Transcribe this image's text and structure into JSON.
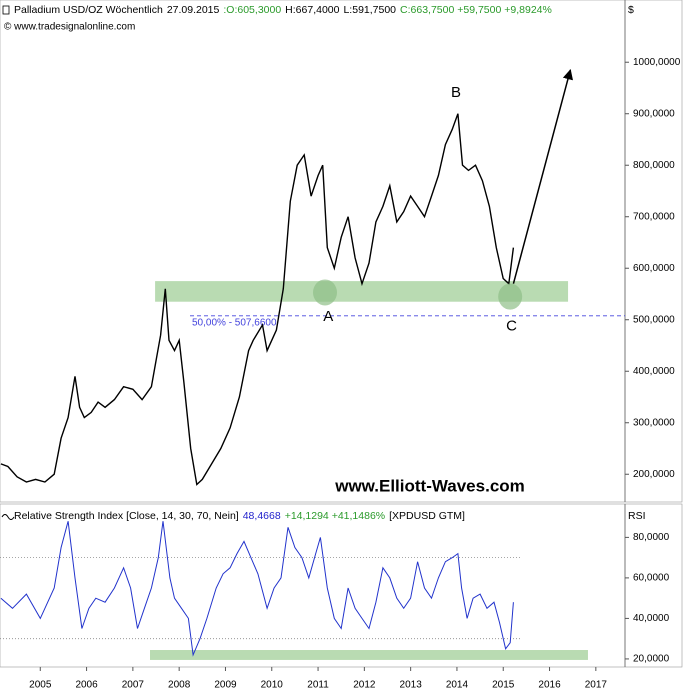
{
  "chart_data": [
    {
      "type": "line",
      "title_parts": [
        {
          "text": "Palladium USD/OZ Wöchentlich",
          "color": "#000000"
        },
        {
          "text": "27.09.2015",
          "color": "#000000"
        },
        {
          "text": ":O:605,3000",
          "color": "#2a9a2a"
        },
        {
          "text": "H:667,4000",
          "color": "#000000"
        },
        {
          "text": "L:591,7500",
          "color": "#000000"
        },
        {
          "text": "C:663,7500 +59,7500 +9,8924%",
          "color": "#2a9a2a"
        }
      ],
      "subtitle": "© www.tradesignalonline.com",
      "unit": "$",
      "watermark": "www.Elliott-Waves.com",
      "xlim": [
        2004.63,
        2018.13
      ],
      "ylim": [
        150,
        1115
      ],
      "yticks": [
        {
          "value": 200,
          "label": "200,0000"
        },
        {
          "value": 300,
          "label": "300,0000"
        },
        {
          "value": 400,
          "label": "400,0000"
        },
        {
          "value": 500,
          "label": "500,0000"
        },
        {
          "value": 600,
          "label": "600,0000"
        },
        {
          "value": 700,
          "label": "700,0000"
        },
        {
          "value": 800,
          "label": "800,0000"
        },
        {
          "value": 900,
          "label": "900,0000"
        },
        {
          "value": 1000,
          "label": "1000,0000"
        }
      ],
      "series": [
        {
          "color": "#000000",
          "x": [
            2004.65,
            2004.8,
            2005.0,
            2005.2,
            2005.4,
            2005.6,
            2005.8,
            2005.95,
            2006.1,
            2006.25,
            2006.35,
            2006.45,
            2006.6,
            2006.75,
            2006.9,
            2007.1,
            2007.3,
            2007.5,
            2007.7,
            2007.9,
            2008.0,
            2008.1,
            2008.2,
            2008.28,
            2008.4,
            2008.5,
            2008.6,
            2008.75,
            2008.88,
            2009.0,
            2009.2,
            2009.4,
            2009.6,
            2009.8,
            2010.0,
            2010.1,
            2010.3,
            2010.4,
            2010.6,
            2010.75,
            2010.9,
            2011.05,
            2011.2,
            2011.35,
            2011.5,
            2011.6,
            2011.7,
            2011.85,
            2012.0,
            2012.15,
            2012.3,
            2012.45,
            2012.6,
            2012.75,
            2012.9,
            2013.05,
            2013.2,
            2013.35,
            2013.5,
            2013.65,
            2013.8,
            2013.95,
            2014.1,
            2014.25,
            2014.4,
            2014.52,
            2014.62,
            2014.75,
            2014.9,
            2015.05,
            2015.2,
            2015.35,
            2015.5,
            2015.62,
            2015.72
          ],
          "values": [
            220,
            215,
            195,
            185,
            190,
            185,
            200,
            270,
            310,
            390,
            330,
            310,
            320,
            340,
            330,
            345,
            370,
            365,
            345,
            370,
            420,
            470,
            560,
            460,
            440,
            460,
            380,
            250,
            180,
            190,
            220,
            250,
            290,
            350,
            440,
            460,
            490,
            440,
            480,
            560,
            730,
            800,
            820,
            740,
            780,
            800,
            640,
            600,
            660,
            700,
            620,
            570,
            610,
            690,
            720,
            760,
            690,
            710,
            740,
            720,
            700,
            740,
            780,
            840,
            870,
            900,
            800,
            790,
            800,
            770,
            720,
            640,
            580,
            570,
            640
          ]
        }
      ],
      "zone": {
        "x": [
          2007.98,
          2016.9
        ],
        "y": [
          535,
          575
        ],
        "color": "#b9dbb2"
      },
      "level": {
        "value": 507.66,
        "label": "50,00% - 507,6600",
        "color": "#4444dd"
      },
      "labels": [
        {
          "text": "A",
          "x": 2011.72,
          "y": 505
        },
        {
          "text": "B",
          "x": 2014.48,
          "y": 940
        },
        {
          "text": "C",
          "x": 2015.68,
          "y": 487
        }
      ],
      "circles": [
        {
          "x": 2011.65,
          "y": 553
        },
        {
          "x": 2015.65,
          "y": 545
        }
      ],
      "arrow": {
        "x": [
          2015.72,
          2016.95
        ],
        "y": [
          570,
          985
        ]
      }
    },
    {
      "type": "line",
      "title_parts": [
        {
          "text": "Relative Strength Index [Close, 14, 30, 70, Nein]",
          "color": "#000000"
        },
        {
          "text": "48,4668",
          "color": "#2222cc"
        },
        {
          "text": "+14,1294 +41,1486%",
          "color": "#2a9a2a"
        },
        {
          "text": "[XPDUSD GTM]",
          "color": "#000000"
        }
      ],
      "unit": "RSI",
      "xlim": [
        2004.63,
        2018.13
      ],
      "ylim": [
        17,
        95
      ],
      "yticks": [
        {
          "value": 20,
          "label": "20,0000"
        },
        {
          "value": 40,
          "label": "40,0000"
        },
        {
          "value": 60,
          "label": "60,0000"
        },
        {
          "value": 80,
          "label": "80,0000"
        }
      ],
      "xticks": [
        {
          "value": 2005.5,
          "label": "2005"
        },
        {
          "value": 2006.5,
          "label": "2006"
        },
        {
          "value": 2007.5,
          "label": "2007"
        },
        {
          "value": 2008.5,
          "label": "2008"
        },
        {
          "value": 2009.5,
          "label": "2009"
        },
        {
          "value": 2010.5,
          "label": "2010"
        },
        {
          "value": 2011.5,
          "label": "2011"
        },
        {
          "value": 2012.5,
          "label": "2012"
        },
        {
          "value": 2013.5,
          "label": "2013"
        },
        {
          "value": 2014.5,
          "label": "2014"
        },
        {
          "value": 2015.5,
          "label": "2015"
        },
        {
          "value": 2016.5,
          "label": "2016"
        },
        {
          "value": 2017.5,
          "label": "2017"
        }
      ],
      "rsi_levels": [
        30,
        70
      ],
      "series": [
        {
          "color": "#2233cc",
          "x": [
            2004.65,
            2004.9,
            2005.2,
            2005.5,
            2005.8,
            2005.95,
            2006.1,
            2006.25,
            2006.4,
            2006.55,
            2006.7,
            2006.9,
            2007.1,
            2007.3,
            2007.45,
            2007.6,
            2007.75,
            2007.9,
            2008.05,
            2008.15,
            2008.3,
            2008.4,
            2008.55,
            2008.7,
            2008.8,
            2008.95,
            2009.1,
            2009.3,
            2009.45,
            2009.6,
            2009.75,
            2009.9,
            2010.05,
            2010.2,
            2010.4,
            2010.55,
            2010.7,
            2010.85,
            2011.0,
            2011.15,
            2011.3,
            2011.45,
            2011.55,
            2011.7,
            2011.85,
            2012.0,
            2012.15,
            2012.3,
            2012.45,
            2012.6,
            2012.75,
            2012.9,
            2013.05,
            2013.2,
            2013.35,
            2013.5,
            2013.65,
            2013.8,
            2013.95,
            2014.1,
            2014.25,
            2014.4,
            2014.52,
            2014.6,
            2014.72,
            2014.85,
            2015.0,
            2015.15,
            2015.3,
            2015.42,
            2015.55,
            2015.65,
            2015.72
          ],
          "values": [
            50,
            45,
            52,
            40,
            55,
            75,
            88,
            60,
            35,
            45,
            50,
            48,
            55,
            65,
            55,
            35,
            45,
            55,
            70,
            88,
            60,
            50,
            45,
            40,
            22,
            30,
            40,
            55,
            62,
            65,
            72,
            78,
            70,
            62,
            45,
            55,
            60,
            85,
            75,
            70,
            60,
            72,
            80,
            55,
            40,
            35,
            55,
            45,
            40,
            35,
            48,
            65,
            60,
            50,
            45,
            50,
            68,
            55,
            50,
            60,
            68,
            70,
            72,
            55,
            40,
            50,
            52,
            45,
            48,
            38,
            25,
            28,
            48
          ]
        }
      ],
      "zone": {
        "x": [
          2007.87,
          2017.33
        ],
        "y": [
          19.5,
          24.4
        ],
        "color": "#b9dbb2"
      }
    }
  ]
}
